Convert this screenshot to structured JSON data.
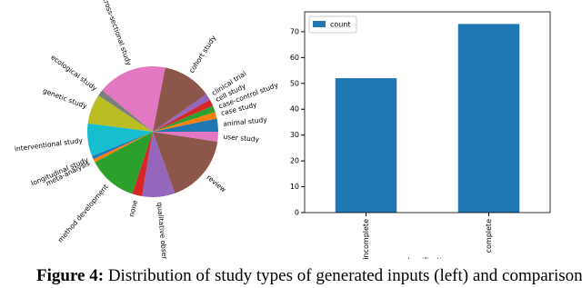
{
  "chart_data": [
    {
      "type": "pie",
      "categories": [
        "animal study",
        "case study",
        "case-control study",
        "cell study",
        "clinical trial",
        "cohort study",
        "cross-sectional study",
        "ecological study",
        "genetic study",
        "interventional study",
        "longitudinal study",
        "meta-analysis",
        "method development",
        "none",
        "qualitative observational",
        "review",
        "user study"
      ],
      "values": [
        4,
        2,
        2,
        2,
        2,
        15,
        21,
        2,
        9,
        10,
        1,
        1,
        15,
        3,
        10,
        21,
        3
      ],
      "colors": [
        "#1f77b4",
        "#ff7f0e",
        "#2ca02c",
        "#d62728",
        "#9467bd",
        "#8c564b",
        "#e377c2",
        "#7f7f7f",
        "#bcbd22",
        "#17becf",
        "#1f77b4",
        "#ff7f0e",
        "#2ca02c",
        "#d62728",
        "#9467bd",
        "#8c564b",
        "#e377c2"
      ]
    },
    {
      "type": "bar",
      "categories": [
        "incomplete",
        "complete"
      ],
      "series": [
        {
          "name": "count",
          "color": "#1f77b4",
          "values": [
            52,
            73
          ]
        }
      ],
      "x_label": "classification",
      "ylim": [
        0,
        77.7
      ],
      "yticks": [
        0,
        10,
        20,
        30,
        40,
        50,
        60,
        70
      ],
      "legend": "upper-left"
    }
  ],
  "caption": {
    "label": "Figure 4:",
    "text": "Distribution of study types of generated inputs (left) and comparison"
  }
}
